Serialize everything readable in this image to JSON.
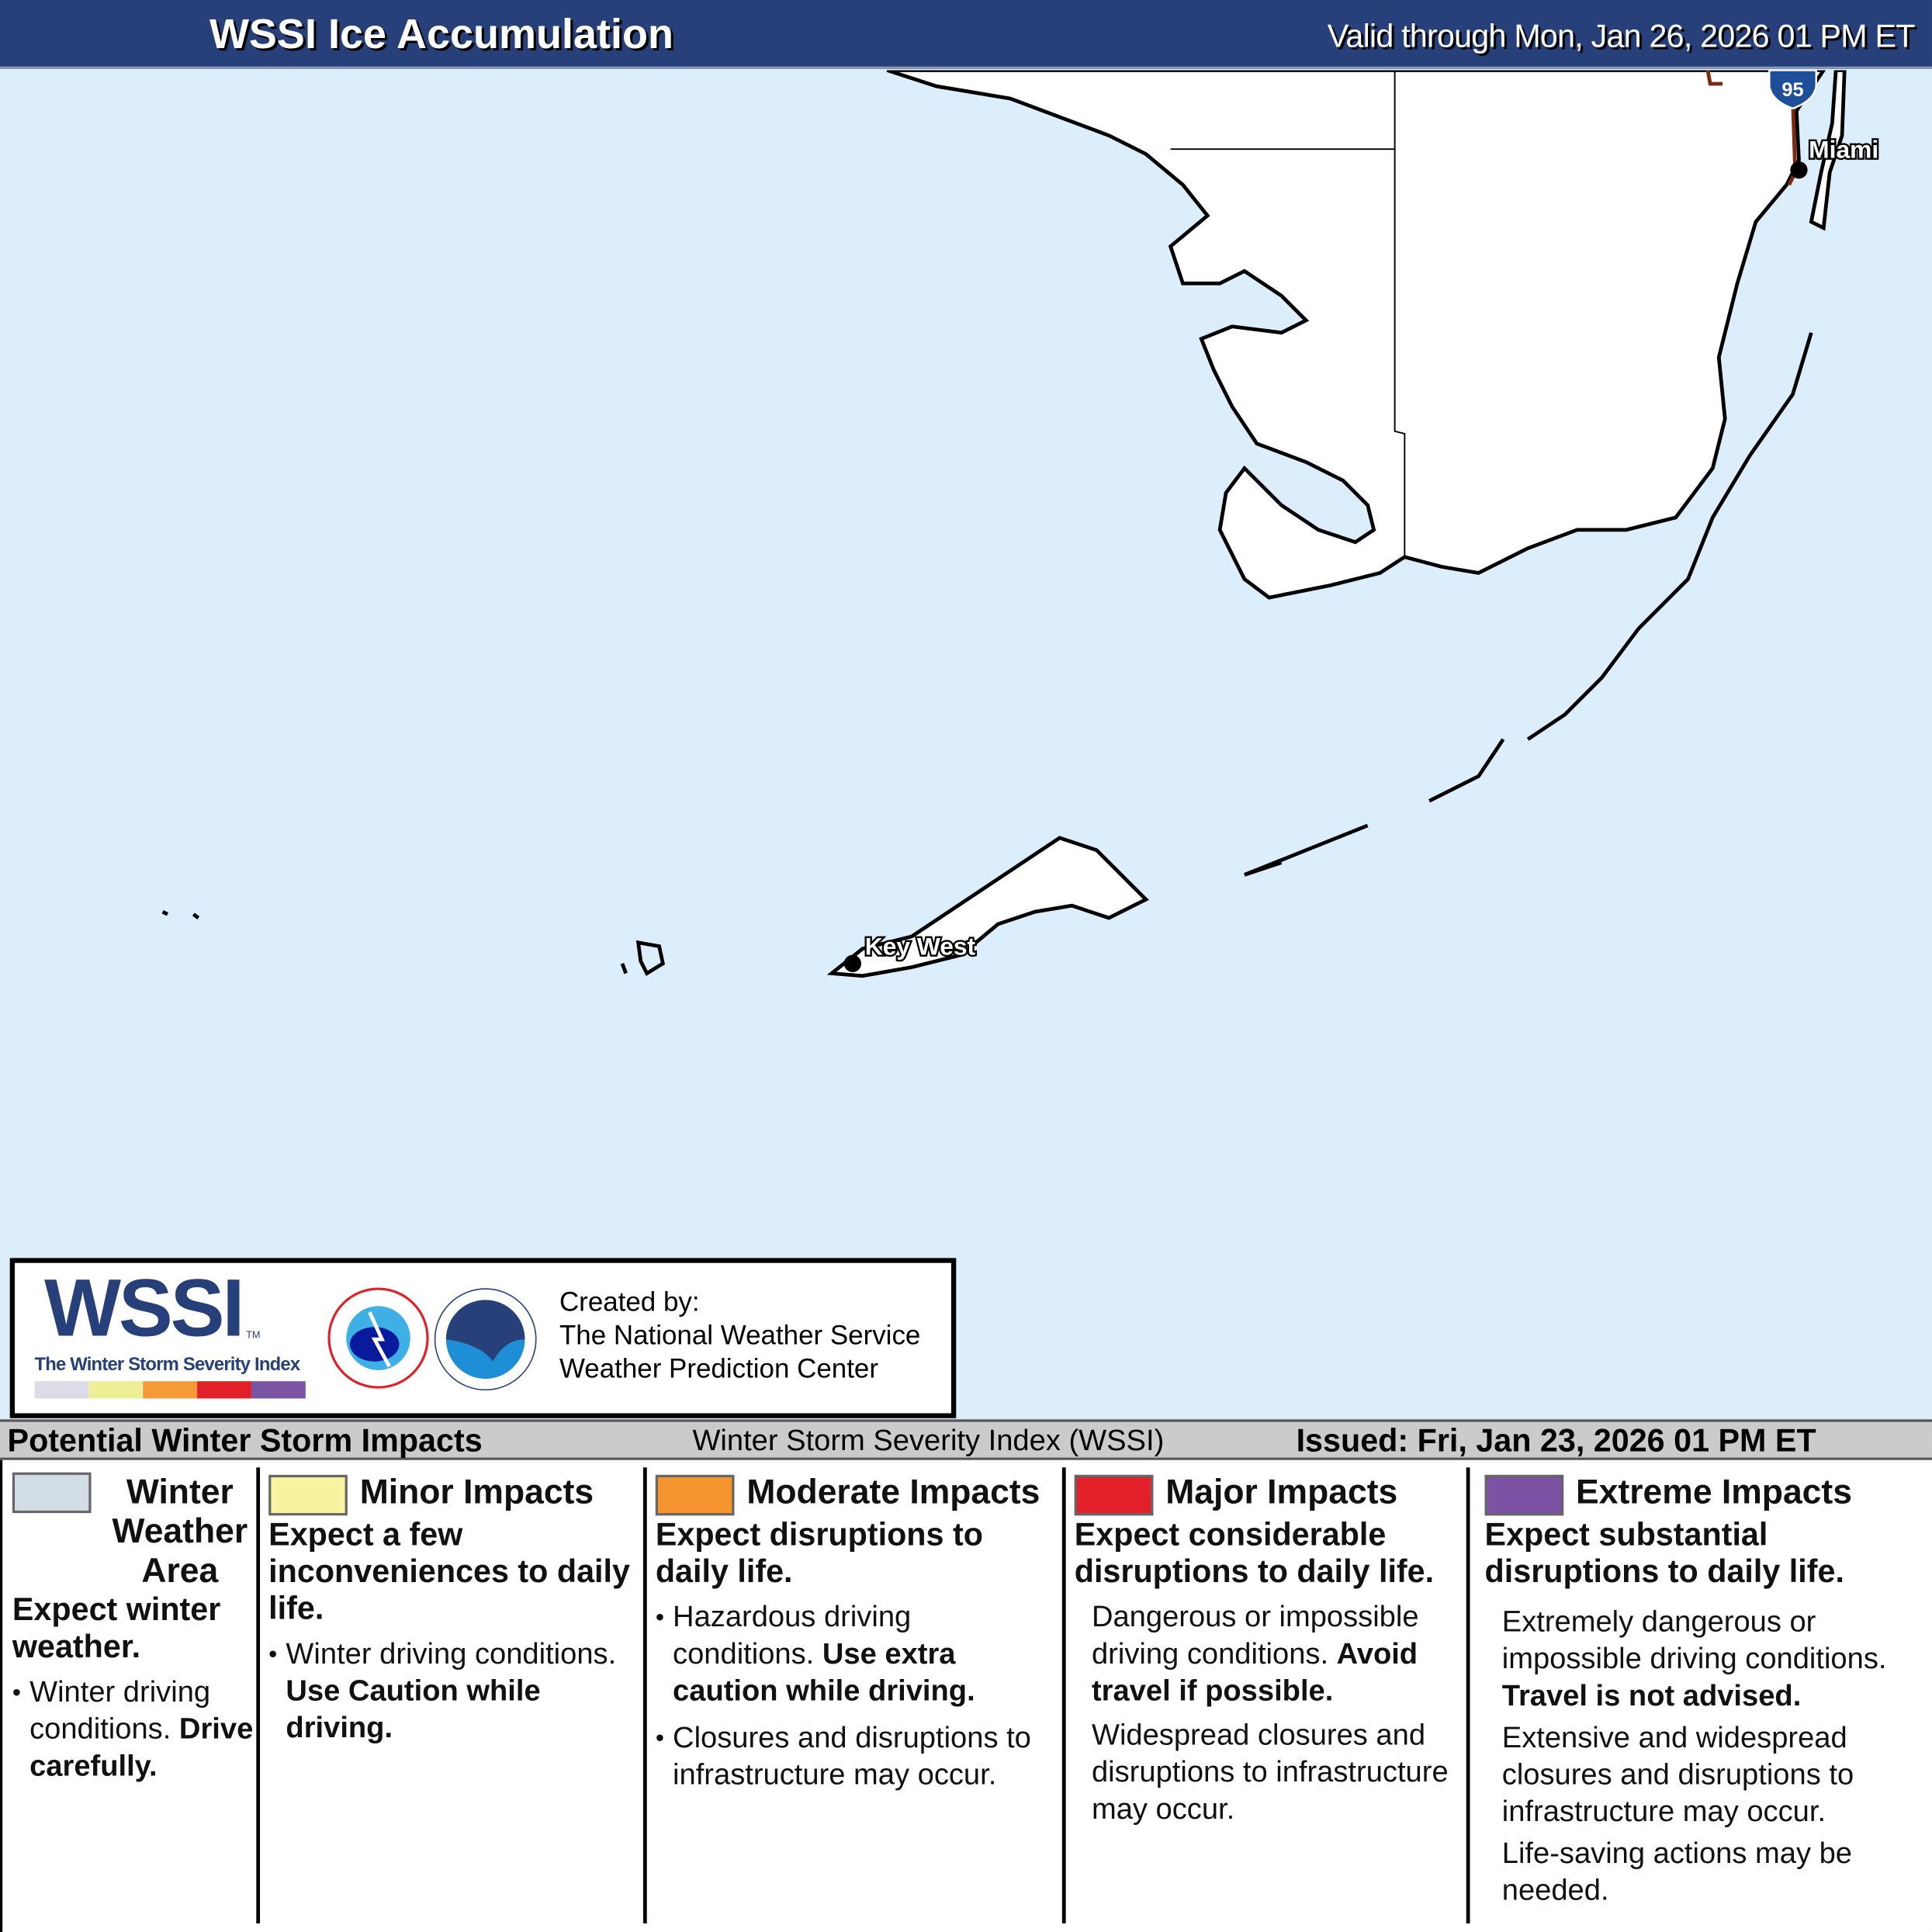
{
  "header": {
    "title": "WSSI Ice Accumulation",
    "valid": "Valid through Mon, Jan 26, 2026 01 PM ET"
  },
  "map": {
    "cities": [
      "Miami",
      "Key West"
    ],
    "highway_shield": "95",
    "colors": {
      "water": "#dcedfb",
      "land": "#ffffff",
      "highway": "#7a2a10",
      "shield": "#1f4f99"
    }
  },
  "logo": {
    "wssi": "WSSI",
    "tm": "TM",
    "subtitle": "The Winter Storm Severity Index",
    "created_by": "Created by:",
    "org1": "The National Weather Service",
    "org2": "Weather Prediction Center",
    "scale_colors": [
      "#dcdce8",
      "#eeee99",
      "#f59a38",
      "#e02128",
      "#7b54a4"
    ]
  },
  "strip": {
    "left": "Potential Winter Storm Impacts",
    "middle": "Winter Storm Severity Index (WSSI)",
    "right": "Issued: Fri, Jan 23, 2026 01 PM ET"
  },
  "legend": [
    {
      "title": "Winter Weather Area",
      "color": "#d3dde5",
      "summary": "Expect winter weather.",
      "bullet": "Winter driving conditions.",
      "bold": "Drive carefully."
    },
    {
      "title": "Minor Impacts",
      "color": "#f7f3a0",
      "summary": "Expect a few inconveniences to daily life.",
      "bullet": "Winter driving conditions.",
      "bold": "Use Caution while driving."
    },
    {
      "title": "Moderate Impacts",
      "color": "#f5952f",
      "summary": "Expect disruptions to daily life.",
      "bullet": "Hazardous driving conditions.",
      "bold": "Use extra caution while driving.",
      "bullet2": "Closures and disruptions to infrastructure may occur."
    },
    {
      "title": "Major Impacts",
      "color": "#e3202a",
      "summary": "Expect considerable disruptions to daily life.",
      "text1": "Dangerous or impossible driving conditions.",
      "bold": "Avoid travel if possible.",
      "text2": "Widespread closures and disruptions to infrastructure may occur."
    },
    {
      "title": "Extreme Impacts",
      "color": "#7b52a3",
      "summary": "Expect substantial disruptions to daily life.",
      "text1": "Extremely dangerous or impossible driving conditions.",
      "bold": "Travel is not advised.",
      "text2": "Extensive and widespread closures and disruptions to infrastructure may occur.",
      "text3": "Life-saving actions may be needed."
    }
  ]
}
